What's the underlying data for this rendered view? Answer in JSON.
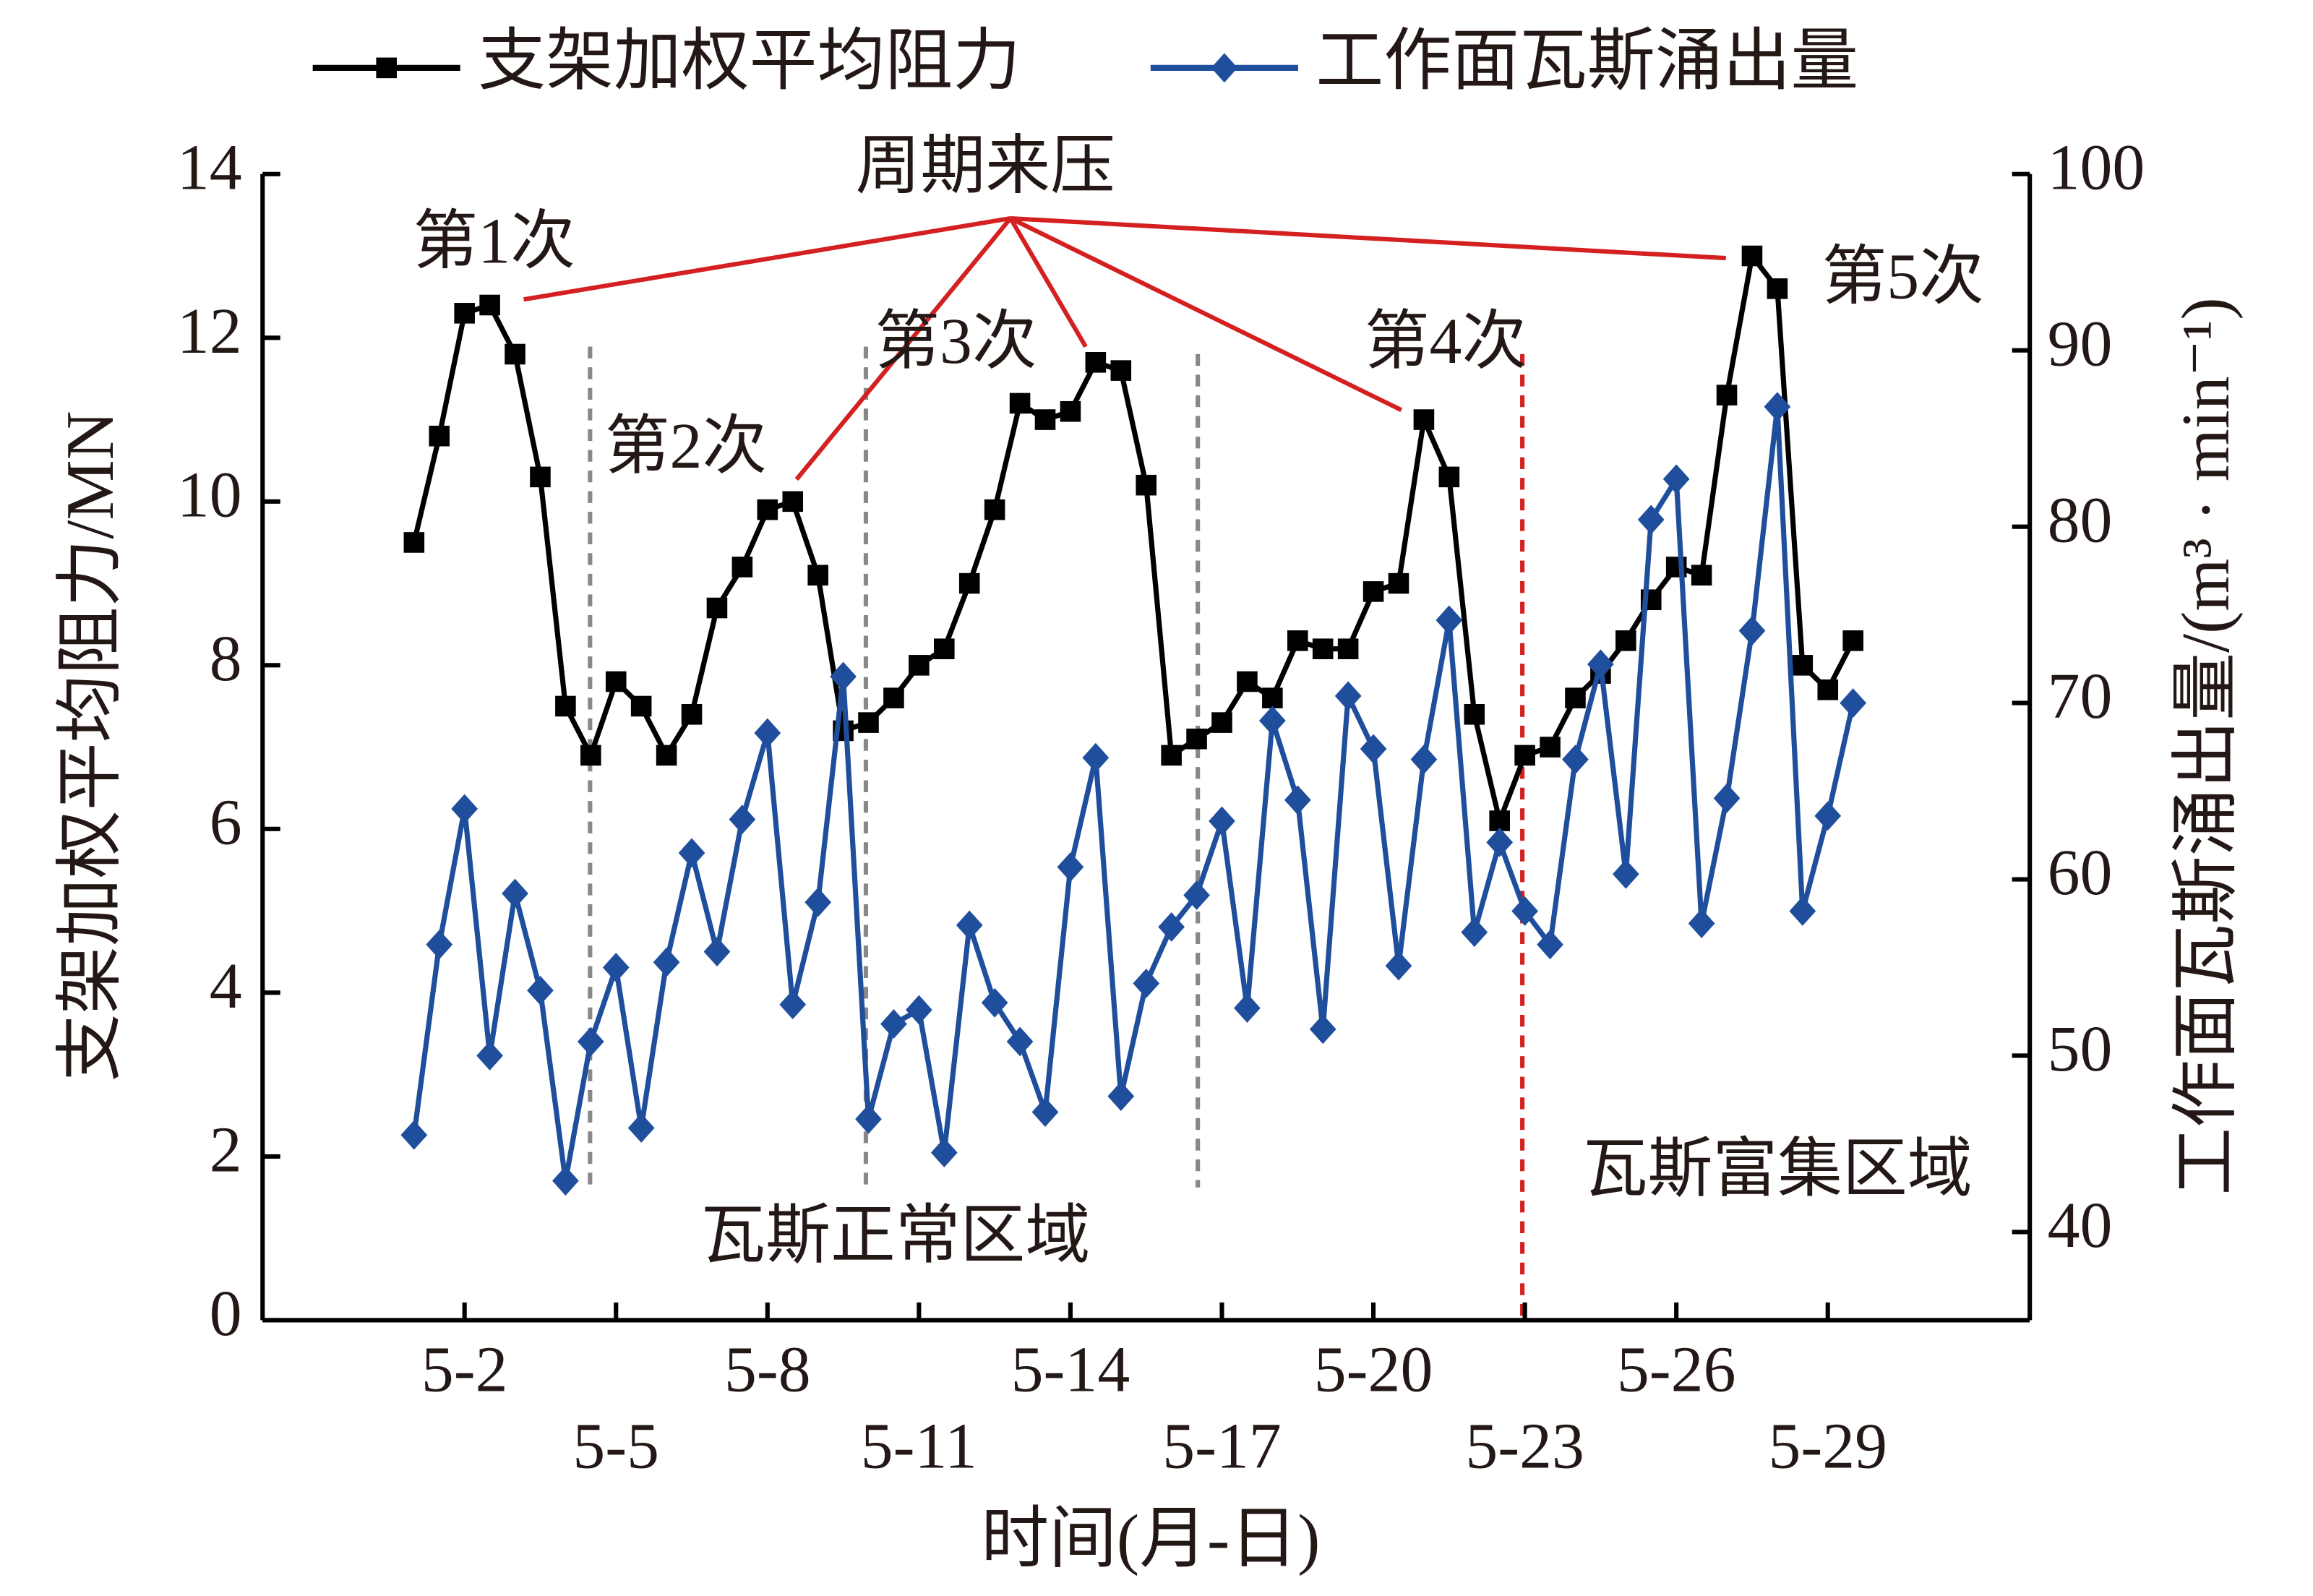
{
  "chart_data": {
    "type": "line",
    "x_label": "时间(月-日)",
    "y_label": "支架加权平均阻力/MN",
    "y2_label": "工作面瓦斯涌出量/(m³ · min⁻¹)",
    "xlim": [
      -2,
      33
    ],
    "xticks": [
      {
        "value": 2,
        "label": "5-2"
      },
      {
        "value": 5,
        "label": "5-5"
      },
      {
        "value": 8,
        "label": "5-8"
      },
      {
        "value": 11,
        "label": "5-11"
      },
      {
        "value": 14,
        "label": "5-14"
      },
      {
        "value": 17,
        "label": "5-17"
      },
      {
        "value": 20,
        "label": "5-20"
      },
      {
        "value": 23,
        "label": "5-23"
      },
      {
        "value": 26,
        "label": "5-26"
      },
      {
        "value": 29,
        "label": "5-29"
      }
    ],
    "ylim": [
      0,
      14
    ],
    "yticks": [
      0,
      2,
      4,
      6,
      8,
      10,
      12,
      14
    ],
    "y2lim": [
      35,
      100
    ],
    "y2ticks": [
      40,
      50,
      60,
      70,
      80,
      90,
      100
    ],
    "x": [
      1,
      1.5,
      2,
      2.5,
      3,
      3.5,
      4,
      4.5,
      5,
      5.5,
      6,
      6.5,
      7,
      7.5,
      8,
      8.5,
      9,
      9.5,
      10,
      10.5,
      11,
      11.5,
      12,
      12.5,
      13,
      13.5,
      14,
      14.5,
      15,
      15.5,
      16,
      16.5,
      17,
      17.5,
      18,
      18.5,
      19,
      19.5,
      20,
      20.5,
      21,
      21.5,
      22,
      22.5,
      23,
      23.5,
      24,
      24.5,
      25,
      25.5,
      26,
      26.5,
      27,
      27.5,
      28,
      28.5,
      29,
      29.5
    ],
    "series": [
      {
        "name": "支架加权平均阻力",
        "color": "#000000",
        "marker": "square",
        "values": [
          9.5,
          10.8,
          12.3,
          12.4,
          11.8,
          10.3,
          7.5,
          6.9,
          7.8,
          7.5,
          6.9,
          7.4,
          8.7,
          9.2,
          9.9,
          10.0,
          9.1,
          7.2,
          7.3,
          7.6,
          8.0,
          8.2,
          9.0,
          9.9,
          11.2,
          11.0,
          11.1,
          11.7,
          11.6,
          10.2,
          6.9,
          7.1,
          7.3,
          7.8,
          7.6,
          8.3,
          8.2,
          8.2,
          8.9,
          9.0,
          11.0,
          10.3,
          7.4,
          6.1,
          6.9,
          7.0,
          7.6,
          7.9,
          8.3,
          8.8,
          9.2,
          9.1,
          11.3,
          13.0,
          12.6,
          8.0,
          7.7,
          8.3
        ]
      },
      {
        "name": "工作面瓦斯涌出量",
        "color": "#1f4e9c",
        "marker": "diamond",
        "axis": "y2",
        "values": [
          45.5,
          56.3,
          64.0,
          50.0,
          59.2,
          53.7,
          42.9,
          50.8,
          55.0,
          45.9,
          55.3,
          61.5,
          55.9,
          63.4,
          68.3,
          52.9,
          58.7,
          71.5,
          46.4,
          51.8,
          52.6,
          44.5,
          57.4,
          53.0,
          50.8,
          46.8,
          60.7,
          66.9,
          47.7,
          54.1,
          57.3,
          59.1,
          63.3,
          52.7,
          69.0,
          64.5,
          51.5,
          70.4,
          67.4,
          55.1,
          66.8,
          74.7,
          57.0,
          62.1,
          58.2,
          56.3,
          66.8,
          72.2,
          60.3,
          80.4,
          82.7,
          57.5,
          64.6,
          74.1,
          86.8,
          58.2,
          63.6,
          70.0
        ]
      }
    ],
    "annotations": [
      "周期来压",
      "第1次",
      "第2次",
      "第3次",
      "第4次",
      "第5次",
      "瓦斯正常区域",
      "瓦斯富集区域"
    ]
  }
}
